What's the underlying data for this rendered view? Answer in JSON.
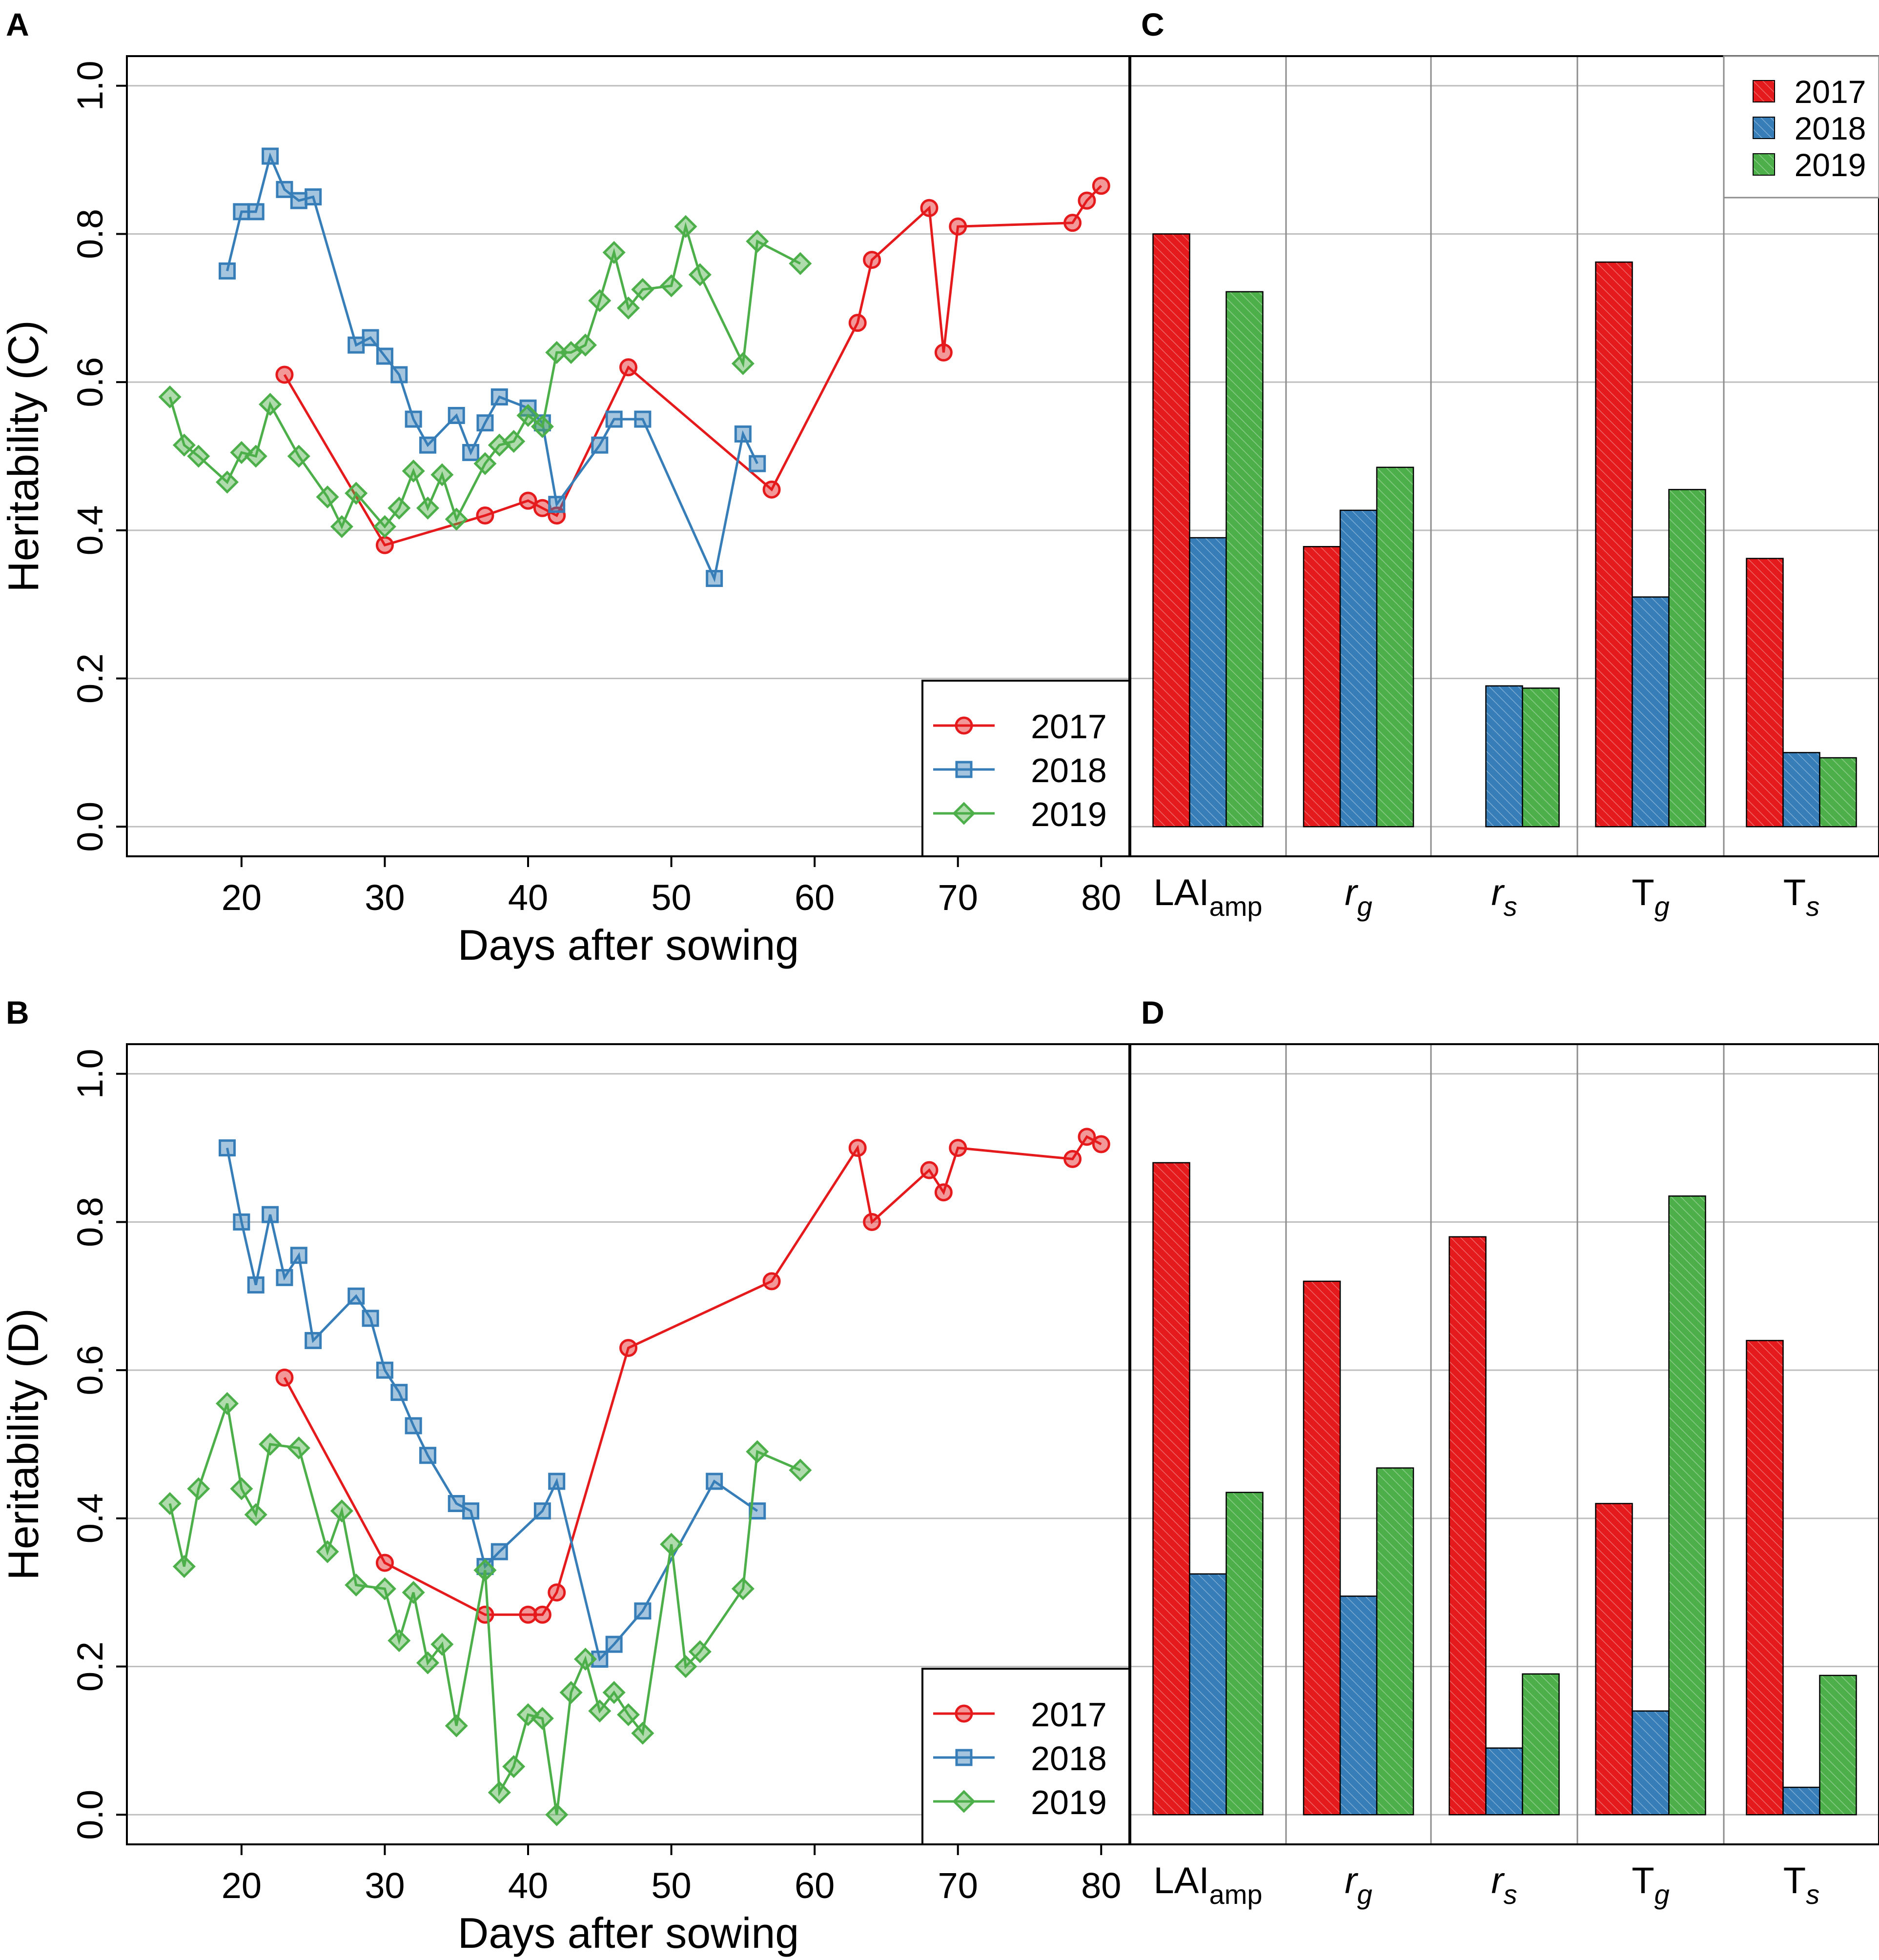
{
  "colors": {
    "2017": "#E41A1C",
    "2018": "#377EB8",
    "2019": "#4DAF4A",
    "grid": "#BEBEBE",
    "axis": "#000000"
  },
  "chart_data": [
    {
      "panel": "A",
      "type": "line",
      "title": "A",
      "xlabel": "Days after sowing",
      "ylabel": "Heritability (C)",
      "xlim": [
        12,
        82
      ],
      "ylim": [
        -0.04,
        1.04
      ],
      "xticks": [
        "20",
        "30",
        "40",
        "50",
        "60",
        "70",
        "80"
      ],
      "yticks": [
        "0.0",
        "0.2",
        "0.4",
        "0.6",
        "0.8",
        "1.0"
      ],
      "legend": {
        "position": "bottom-right",
        "entries": [
          "2017",
          "2018",
          "2019"
        ]
      },
      "series": [
        {
          "name": "2017",
          "marker": "circle",
          "x": [
            23,
            30,
            37,
            40,
            41,
            42,
            47,
            57,
            63,
            64,
            68,
            69,
            70,
            78,
            79,
            80
          ],
          "y": [
            0.61,
            0.38,
            0.42,
            0.44,
            0.43,
            0.42,
            0.62,
            0.455,
            0.68,
            0.765,
            0.835,
            0.64,
            0.81,
            0.815,
            0.845,
            0.865
          ]
        },
        {
          "name": "2018",
          "marker": "square",
          "x": [
            19,
            20,
            21,
            22,
            23,
            24,
            25,
            28,
            29,
            30,
            31,
            32,
            33,
            35,
            36,
            37,
            38,
            40,
            41,
            42,
            45,
            46,
            48,
            53,
            55,
            56
          ],
          "y": [
            0.75,
            0.83,
            0.83,
            0.905,
            0.86,
            0.845,
            0.85,
            0.65,
            0.66,
            0.635,
            0.61,
            0.55,
            0.515,
            0.555,
            0.505,
            0.545,
            0.58,
            0.565,
            0.545,
            0.435,
            0.515,
            0.55,
            0.55,
            0.335,
            0.53,
            0.49
          ]
        },
        {
          "name": "2019",
          "marker": "diamond",
          "x": [
            15,
            16,
            17,
            19,
            20,
            21,
            22,
            24,
            26,
            27,
            28,
            30,
            31,
            32,
            33,
            34,
            35,
            37,
            38,
            39,
            40,
            41,
            42,
            43,
            44,
            45,
            46,
            47,
            48,
            50,
            51,
            52,
            55,
            56,
            59
          ],
          "y": [
            0.58,
            0.515,
            0.5,
            0.465,
            0.505,
            0.5,
            0.57,
            0.5,
            0.445,
            0.405,
            0.45,
            0.405,
            0.43,
            0.48,
            0.43,
            0.475,
            0.415,
            0.49,
            0.515,
            0.52,
            0.555,
            0.54,
            0.64,
            0.64,
            0.65,
            0.71,
            0.775,
            0.7,
            0.725,
            0.73,
            0.81,
            0.745,
            0.625,
            0.79,
            0.76
          ]
        }
      ]
    },
    {
      "panel": "B",
      "type": "line",
      "title": "B",
      "xlabel": "Days after sowing",
      "ylabel": "Heritability (D)",
      "xlim": [
        12,
        82
      ],
      "ylim": [
        -0.04,
        1.04
      ],
      "xticks": [
        "20",
        "30",
        "40",
        "50",
        "60",
        "70",
        "80"
      ],
      "yticks": [
        "0.0",
        "0.2",
        "0.4",
        "0.6",
        "0.8",
        "1.0"
      ],
      "legend": {
        "position": "bottom-right",
        "entries": [
          "2017",
          "2018",
          "2019"
        ]
      },
      "series": [
        {
          "name": "2017",
          "marker": "circle",
          "x": [
            23,
            30,
            37,
            40,
            41,
            42,
            47,
            57,
            63,
            64,
            68,
            69,
            70,
            78,
            79,
            80
          ],
          "y": [
            0.59,
            0.34,
            0.27,
            0.27,
            0.27,
            0.3,
            0.63,
            0.72,
            0.9,
            0.8,
            0.87,
            0.84,
            0.9,
            0.885,
            0.915,
            0.905
          ]
        },
        {
          "name": "2018",
          "marker": "square",
          "x": [
            19,
            20,
            21,
            22,
            23,
            24,
            25,
            28,
            29,
            30,
            31,
            32,
            33,
            35,
            36,
            37,
            38,
            41,
            42,
            45,
            46,
            48,
            53,
            56
          ],
          "y": [
            0.9,
            0.8,
            0.715,
            0.81,
            0.725,
            0.755,
            0.64,
            0.7,
            0.67,
            0.6,
            0.57,
            0.525,
            0.485,
            0.42,
            0.41,
            0.335,
            0.355,
            0.41,
            0.45,
            0.21,
            0.23,
            0.275,
            0.45,
            0.41
          ]
        },
        {
          "name": "2019",
          "marker": "diamond",
          "x": [
            15,
            16,
            17,
            19,
            20,
            21,
            22,
            24,
            26,
            27,
            28,
            30,
            31,
            32,
            33,
            34,
            35,
            37,
            38,
            39,
            40,
            41,
            42,
            43,
            44,
            45,
            46,
            47,
            48,
            50,
            51,
            52,
            55,
            56,
            59
          ],
          "y": [
            0.42,
            0.335,
            0.44,
            0.555,
            0.44,
            0.405,
            0.5,
            0.495,
            0.355,
            0.41,
            0.31,
            0.305,
            0.235,
            0.3,
            0.205,
            0.23,
            0.12,
            0.33,
            0.03,
            0.065,
            0.135,
            0.13,
            0.0,
            0.165,
            0.21,
            0.14,
            0.165,
            0.135,
            0.11,
            0.365,
            0.2,
            0.22,
            0.305,
            0.49,
            0.465
          ]
        }
      ]
    },
    {
      "panel": "C",
      "type": "bar",
      "title": "C",
      "ylim": [
        -0.04,
        1.04
      ],
      "categories": [
        {
          "main": "LAI",
          "sub": "amp",
          "main_italic": false,
          "sub_italic": false
        },
        {
          "main": "r",
          "sub": "g",
          "main_italic": true,
          "sub_italic": true
        },
        {
          "main": "r",
          "sub": "s",
          "main_italic": true,
          "sub_italic": true
        },
        {
          "main": "T",
          "sub": "g",
          "main_italic": false,
          "sub_italic": true
        },
        {
          "main": "T",
          "sub": "s",
          "main_italic": false,
          "sub_italic": true
        }
      ],
      "legend": {
        "position": "top-right",
        "entries": [
          "2017",
          "2018",
          "2019"
        ]
      },
      "series": [
        {
          "name": "2017",
          "values": [
            0.8,
            0.378,
            0.0,
            0.762,
            0.362
          ]
        },
        {
          "name": "2018",
          "values": [
            0.39,
            0.427,
            0.19,
            0.31,
            0.1
          ]
        },
        {
          "name": "2019",
          "values": [
            0.722,
            0.485,
            0.187,
            0.455,
            0.093
          ]
        }
      ]
    },
    {
      "panel": "D",
      "type": "bar",
      "title": "D",
      "ylim": [
        -0.04,
        1.04
      ],
      "categories": [
        {
          "main": "LAI",
          "sub": "amp",
          "main_italic": false,
          "sub_italic": false
        },
        {
          "main": "r",
          "sub": "g",
          "main_italic": true,
          "sub_italic": true
        },
        {
          "main": "r",
          "sub": "s",
          "main_italic": true,
          "sub_italic": true
        },
        {
          "main": "T",
          "sub": "g",
          "main_italic": false,
          "sub_italic": true
        },
        {
          "main": "T",
          "sub": "s",
          "main_italic": false,
          "sub_italic": true
        }
      ],
      "series": [
        {
          "name": "2017",
          "values": [
            0.88,
            0.72,
            0.78,
            0.42,
            0.64
          ]
        },
        {
          "name": "2018",
          "values": [
            0.325,
            0.295,
            0.09,
            0.14,
            0.037
          ]
        },
        {
          "name": "2019",
          "values": [
            0.435,
            0.468,
            0.19,
            0.835,
            0.188
          ]
        }
      ]
    }
  ]
}
